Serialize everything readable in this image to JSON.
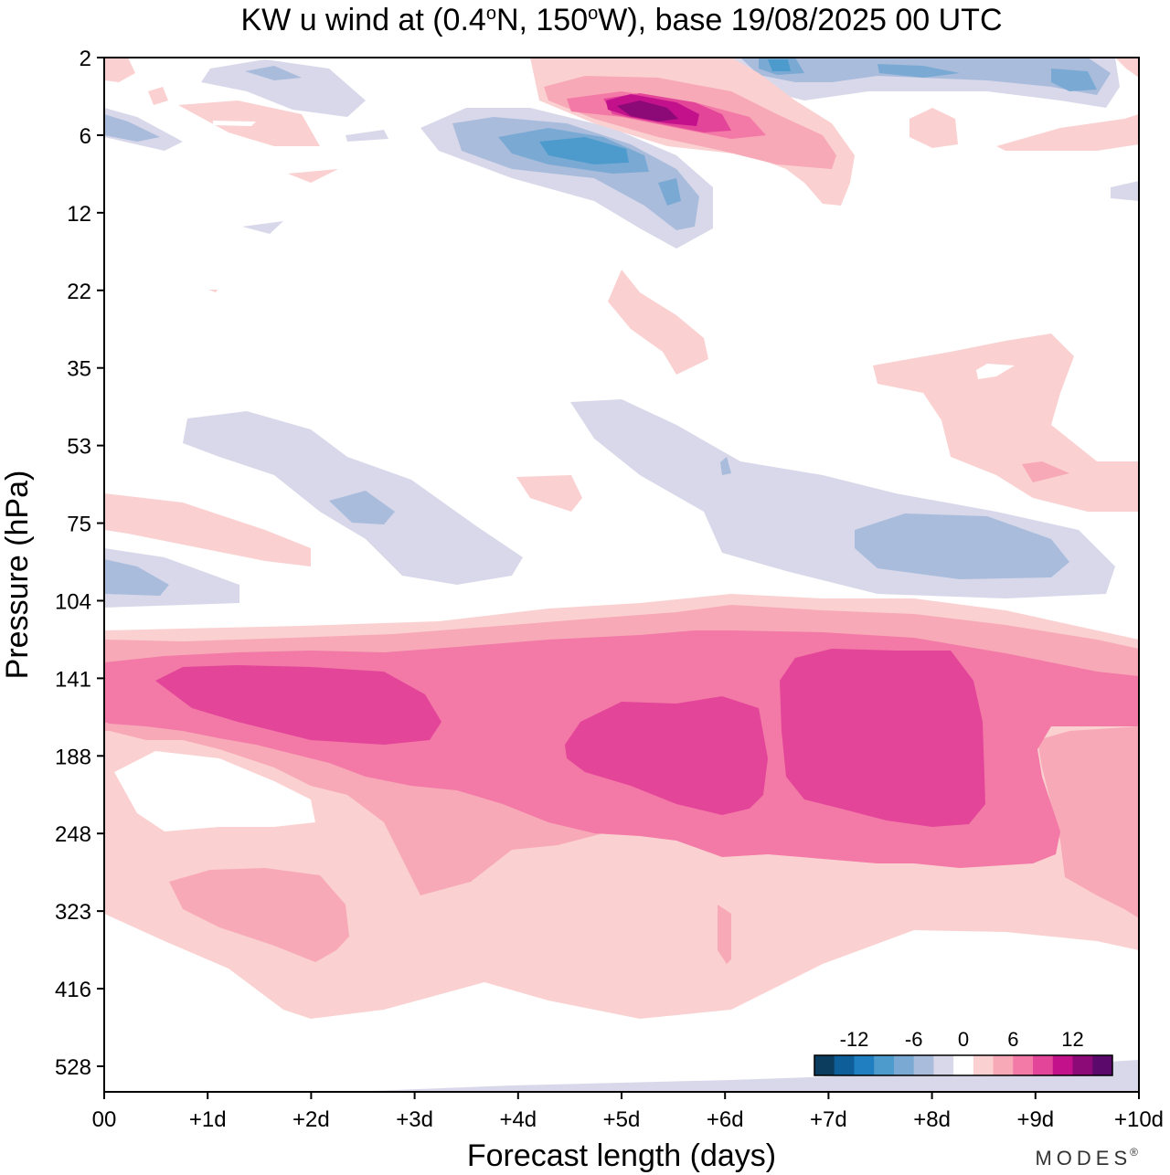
{
  "chart_data": {
    "type": "contour",
    "title": "KW u wind at (0.4°N, 150°W),  base 19/08/2025  00 UTC",
    "title_parts": {
      "prefix": "KW u wind at (0.4",
      "deg1": "o",
      "mid": "N, 150",
      "deg2": "o",
      "suffix": "W),  base 19/08/2025  00 UTC"
    },
    "xlabel": "Forecast length (days)",
    "ylabel": "Pressure (hPa)",
    "x_ticks": [
      "00",
      "+1d",
      "+2d",
      "+3d",
      "+4d",
      "+5d",
      "+6d",
      "+7d",
      "+8d",
      "+9d",
      "+10d"
    ],
    "xlim": [
      0,
      10
    ],
    "y_ticks": [
      "2",
      "6",
      "12",
      "22",
      "35",
      "53",
      "75",
      "104",
      "141",
      "188",
      "248",
      "323",
      "416",
      "528"
    ],
    "y_axis": "pressure, decreasing upward",
    "colorbar": {
      "labels": [
        "-12",
        "-6",
        "0",
        "6",
        "12"
      ],
      "levels": [
        -14,
        -12,
        -10,
        -8,
        -6,
        -4,
        -2,
        2,
        4,
        6,
        8,
        10,
        12,
        14
      ],
      "colors": [
        "#0d3d5e",
        "#0e5f99",
        "#1f7fc0",
        "#4c9bcc",
        "#7aaad4",
        "#a9bcdc",
        "#d8d8ea",
        "#ffffff",
        "#fbd0d0",
        "#f7a9b7",
        "#f379a7",
        "#e34599",
        "#c2118b",
        "#8b0a78",
        "#5b0a6b"
      ],
      "placement": "bottom-right"
    },
    "features": [
      {
        "name": "upper-stratosphere negative band",
        "min_value": -8,
        "level_hPa": "5-10",
        "days": [
          3,
          6
        ]
      },
      {
        "name": "upper-stratosphere positive core",
        "max_value": 14,
        "level_hPa": "3-6",
        "days": [
          4,
          7
        ]
      },
      {
        "name": "upper-troposphere westerly layer",
        "max_value": 10,
        "level_hPa": "120-250",
        "days": [
          0,
          10
        ]
      },
      {
        "name": "lower-stratosphere easterly band",
        "min_value": -4,
        "level_hPa": "50-100",
        "days": [
          6.5,
          9.5
        ]
      }
    ]
  },
  "logo_text": "MODES",
  "logo_mark": "®"
}
